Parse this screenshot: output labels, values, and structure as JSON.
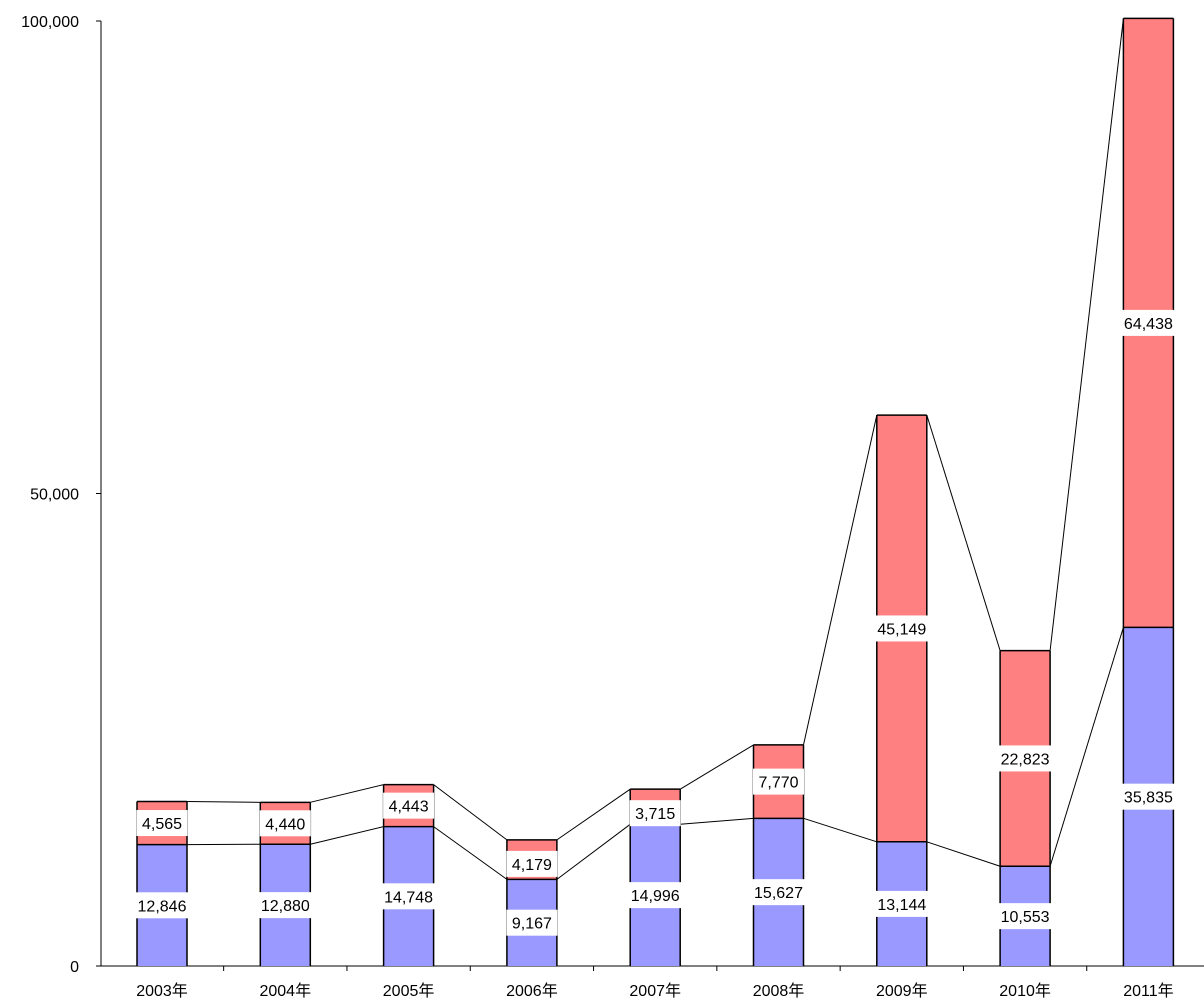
{
  "chart_data": {
    "type": "bar",
    "stacked": true,
    "categories": [
      "2003年",
      "2004年",
      "2005年",
      "2006年",
      "2007年",
      "2008年",
      "2009年",
      "2010年",
      "2011年"
    ],
    "series": [
      {
        "values": [
          12846,
          12880,
          14748,
          9167,
          14996,
          15627,
          13144,
          10553,
          35835
        ],
        "color": "#9999ff"
      },
      {
        "values": [
          4565,
          4440,
          4443,
          4179,
          3715,
          7770,
          45149,
          22823,
          64438
        ],
        "color": "#ff8080"
      }
    ],
    "value_labels": [
      [
        "12,846",
        "12,880",
        "14,748",
        "9,167",
        "14,996",
        "15,627",
        "13,144",
        "10,553",
        "35,835"
      ],
      [
        "4,565",
        "4,440",
        "4,443",
        "4,179",
        "3,715",
        "7,770",
        "45,149",
        "22,823",
        "64,438"
      ]
    ],
    "y_ticks": [
      0,
      50000,
      100000
    ],
    "y_tick_labels": [
      "0",
      "50,000",
      "100,000"
    ],
    "ylim": [
      0,
      100000
    ],
    "series_connector_lines": true,
    "grid": false,
    "title": "",
    "xlabel": "",
    "ylabel": ""
  }
}
